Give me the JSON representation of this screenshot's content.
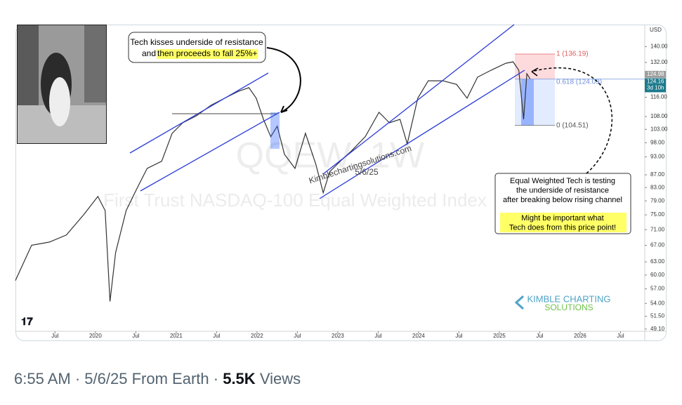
{
  "chart_data": {
    "type": "line",
    "watermark_title": "QQEW, 1W",
    "watermark_subtitle": "First Trust NASDAQ-100 Equal Weighted Index",
    "currency": "USD",
    "x": [
      2019.01,
      2019.21,
      2019.43,
      2019.64,
      2019.86,
      2020.03,
      2020.12,
      2020.18,
      2020.25,
      2020.38,
      2020.51,
      2020.64,
      2020.82,
      2020.95,
      2021.08,
      2021.25,
      2021.43,
      2021.6,
      2021.77,
      2021.9,
      2021.99,
      2022.08,
      2022.17,
      2022.25,
      2022.34,
      2022.47,
      2022.6,
      2022.73,
      2022.82,
      2022.9,
      2023.03,
      2023.17,
      2023.34,
      2023.51,
      2023.64,
      2023.77,
      2023.86,
      2023.99,
      2024.12,
      2024.3,
      2024.47,
      2024.6,
      2024.73,
      2024.9,
      2025.08,
      2025.17,
      2025.24,
      2025.3,
      2025.34,
      2025.38
    ],
    "values": [
      58.8,
      67.0,
      67.8,
      69.6,
      75.2,
      80.3,
      76.2,
      54.4,
      65.2,
      76.2,
      82.5,
      89.1,
      91.5,
      101.5,
      105.5,
      108.3,
      112.6,
      115.6,
      118.6,
      120.2,
      115.6,
      106.9,
      100.2,
      104.2,
      93.9,
      89.1,
      101.5,
      90.3,
      81.4,
      88.0,
      91.5,
      95.1,
      100.2,
      109.7,
      105.5,
      106.9,
      97.6,
      115.6,
      123.3,
      123.3,
      121.7,
      115.6,
      125.0,
      128.3,
      131.6,
      132.3,
      128.3,
      106.9,
      126.6,
      124.2
    ],
    "color": "#333333",
    "log_scale": true,
    "xlim": [
      2019.01,
      2026.8
    ],
    "ylim": [
      48.7,
      151.9
    ],
    "xticks": [
      {
        "value": 2019.5,
        "label": "Jul"
      },
      2020,
      {
        "value": 2020.5,
        "label": "Jul"
      },
      2021,
      {
        "value": 2021.5,
        "label": "Jul"
      },
      2022,
      {
        "value": 2022.5,
        "label": "Jul"
      },
      2023,
      {
        "value": 2023.5,
        "label": "Jul"
      },
      2024,
      {
        "value": 2024.5,
        "label": "Jul"
      },
      2025,
      {
        "value": 2025.5,
        "label": "Jul"
      },
      2026,
      {
        "value": 2026.5,
        "label": "Jul"
      }
    ],
    "yticks": [
      {
        "value": 140,
        "label": "140.00"
      },
      {
        "value": 132,
        "label": "132.00"
      },
      {
        "value": 116,
        "label": "116.00"
      },
      {
        "value": 108,
        "label": "108.00"
      },
      {
        "value": 103,
        "label": "103.00"
      },
      {
        "value": 98,
        "label": "98.00"
      },
      {
        "value": 93,
        "label": "93.00"
      },
      {
        "value": 87,
        "label": "87.00"
      },
      {
        "value": 83,
        "label": "83.00"
      },
      {
        "value": 79,
        "label": "79.00"
      },
      {
        "value": 75,
        "label": "75.00"
      },
      {
        "value": 71,
        "label": "71.00"
      },
      {
        "value": 67,
        "label": "67.00"
      },
      {
        "value": 63,
        "label": "63.00"
      },
      {
        "value": 60,
        "label": "60.00"
      },
      {
        "value": 57,
        "label": "57.00"
      },
      {
        "value": 54,
        "label": "54.00"
      },
      {
        "value": 51.5,
        "label": "51.50"
      },
      {
        "value": 49.1,
        "label": "49.10"
      }
    ],
    "price_tags": [
      {
        "value": 124.98,
        "label": "124.98"
      },
      {
        "value": 124.16,
        "label": "124.16"
      }
    ],
    "countdown": "3d 10h",
    "fib_levels": [
      {
        "value": 136.19,
        "label": "1 (136.19)"
      },
      {
        "value": 124.09,
        "label": "0.618 (124.09)"
      },
      {
        "value": 104.51,
        "label": "0 (104.51)"
      }
    ],
    "annotation_left": {
      "line1": "Tech kisses underside of resistance",
      "line2_prefix": "and",
      "line2_highlight": "then proceeds to fall 25%+"
    },
    "annotation_right": {
      "lines": [
        "Equal Weighted Tech is testing",
        "the underside of resistance",
        "after breaking below rising channel"
      ],
      "highlight_lines": [
        "Might be important what",
        "Tech does from this price point!"
      ]
    },
    "credit_site": "Kimblechartingsolutions.com",
    "credit_date": "5/6/25",
    "logo_line1": "KIMBLE CHARTING",
    "logo_line2": "SOLUTIONS"
  },
  "tweet": {
    "time": "6:55 AM",
    "separator": "·",
    "date": "5/6/25",
    "source": "From Earth",
    "views_count": "5.5K",
    "views_label": "Views"
  }
}
